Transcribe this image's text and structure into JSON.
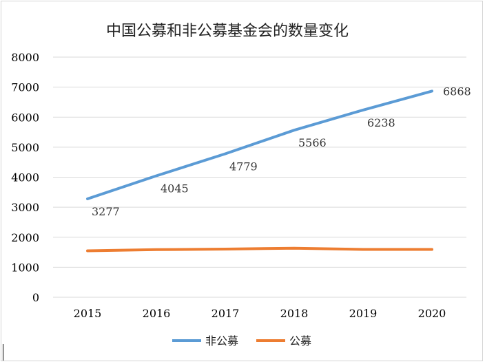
{
  "chart_data": {
    "type": "line",
    "title": "中国公募和非公募基金会的数量变化",
    "xlabel": "",
    "ylabel": "",
    "categories": [
      "2015",
      "2016",
      "2017",
      "2018",
      "2019",
      "2020"
    ],
    "ylim": [
      0,
      8000
    ],
    "yticks": [
      "0",
      "1000",
      "2000",
      "3000",
      "4000",
      "5000",
      "6000",
      "7000",
      "8000"
    ],
    "grid": true,
    "legend_position": "bottom",
    "series": [
      {
        "name": "非公募",
        "color": "#5b9bd5",
        "values": [
          3277,
          4045,
          4779,
          5566,
          6238,
          6868
        ],
        "show_labels": true
      },
      {
        "name": "公募",
        "color": "#ed7d31",
        "values": [
          1548,
          1586,
          1604,
          1635,
          1594,
          1592
        ],
        "show_labels": false
      }
    ]
  }
}
